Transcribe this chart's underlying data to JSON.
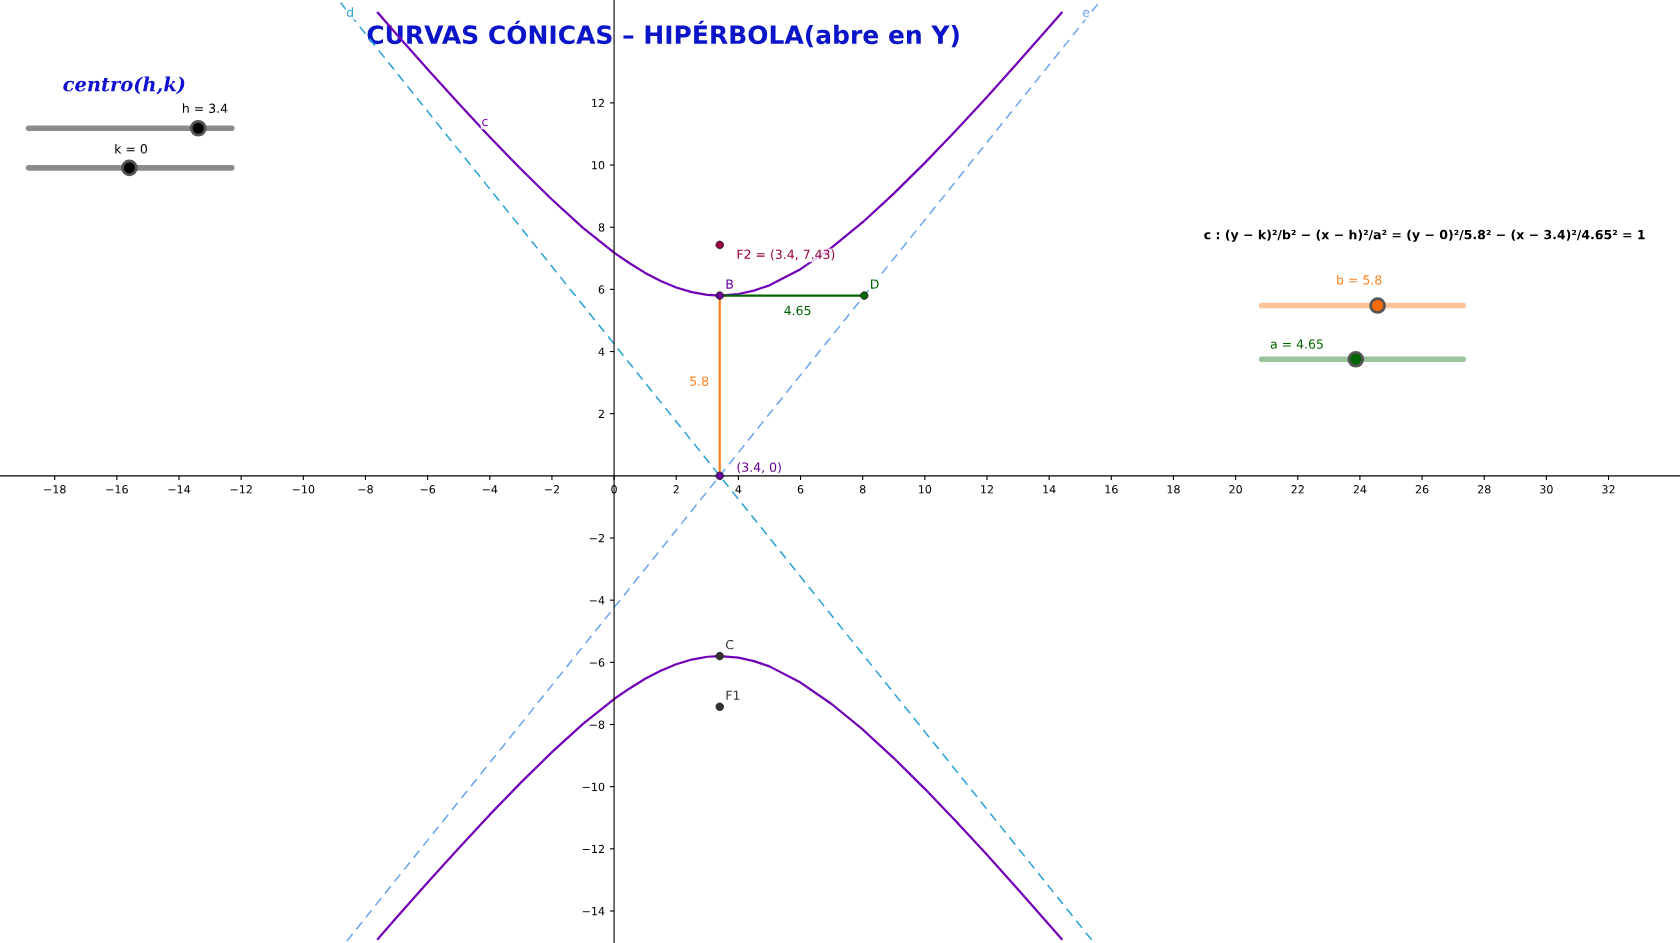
{
  "chart_data": {
    "type": "line",
    "title": "CURVAS CÓNICAS – HIPÉRBOLA(abre en Y)",
    "xlim": [
      -19.76,
      34.3
    ],
    "ylim": [
      -15.03,
      15.31
    ],
    "xticks": [
      -18,
      -16,
      -14,
      -12,
      -10,
      -8,
      -6,
      -4,
      -2,
      0,
      2,
      4,
      6,
      8,
      10,
      12,
      14,
      16,
      18,
      20,
      22,
      24,
      26,
      28,
      30,
      32
    ],
    "yticks": [
      -14,
      -12,
      -10,
      -8,
      -6,
      -4,
      -2,
      2,
      4,
      6,
      8,
      10,
      12
    ],
    "grid": false,
    "legend": false,
    "series": [
      {
        "color": "#7200b8",
        "line_style": "solid",
        "x": [
          -7.6,
          -7,
          -6,
          -5,
          -4,
          -3,
          -2,
          -1,
          0,
          0.5,
          1,
          1.5,
          2,
          2.5,
          3,
          3.4,
          4,
          4.5,
          5,
          6,
          7,
          8,
          9,
          10,
          11,
          12,
          13,
          14,
          14.4
        ],
        "values": [
          14.9,
          14.21,
          13.08,
          11.98,
          10.9,
          9.87,
          8.89,
          7.98,
          7.18,
          6.84,
          6.53,
          6.27,
          6.06,
          5.91,
          5.82,
          5.8,
          5.85,
          5.96,
          6.13,
          6.65,
          7.34,
          8.16,
          9.08,
          10.07,
          11.11,
          12.19,
          13.31,
          14.44,
          14.9
        ]
      },
      {
        "color": "#7200b8",
        "line_style": "solid",
        "x": [
          -7.6,
          -7,
          -6,
          -5,
          -4,
          -3,
          -2,
          -1,
          0,
          0.5,
          1,
          1.5,
          2,
          2.5,
          3,
          3.4,
          4,
          4.5,
          5,
          6,
          7,
          8,
          9,
          10,
          11,
          12,
          13,
          14,
          14.4
        ],
        "values": [
          -14.9,
          -14.21,
          -13.08,
          -11.98,
          -10.9,
          -9.87,
          -8.89,
          -7.98,
          -7.18,
          -6.84,
          -6.53,
          -6.27,
          -6.06,
          -5.91,
          -5.82,
          -5.8,
          -5.85,
          -5.96,
          -6.13,
          -6.65,
          -7.34,
          -8.16,
          -9.08,
          -10.07,
          -11.11,
          -12.19,
          -13.31,
          -14.44,
          -14.9
        ]
      },
      {
        "color": "#29a3d6",
        "line_style": "dashed",
        "x": [
          -8.8,
          15.4
        ],
        "values": [
          15.22,
          -14.97
        ]
      },
      {
        "color": "#6aa6ee",
        "line_style": "dashed",
        "x": [
          -8.6,
          15.6
        ],
        "values": [
          -14.97,
          15.22
        ]
      },
      {
        "color": "#ff7f1a",
        "line_style": "solid",
        "x": [
          3.4,
          3.4
        ],
        "values": [
          0,
          5.8
        ]
      },
      {
        "color": "#006400",
        "line_style": "solid",
        "x": [
          3.4,
          8.05
        ],
        "values": [
          5.8,
          5.8
        ]
      },
      {
        "type": "scatter",
        "marker": "circle",
        "colors": [
          "#660099",
          "#006400",
          "#333333",
          "#333333",
          "#99003d",
          "#660099"
        ],
        "x": [
          3.4,
          8.05,
          3.4,
          3.4,
          3.4,
          3.4
        ],
        "values": [
          5.8,
          5.8,
          -5.8,
          -7.43,
          7.43,
          0
        ]
      }
    ],
    "annotations": [
      "centro(h,k)",
      "h = 3.4",
      "k = 0",
      "c : (y − k)²/b² − (x − h)²/a² = (y − 0)²/5.8² − (x − 3.4)²/4.65² = 1",
      "b = 5.8",
      "a = 4.65",
      {
        "text": "F2 = (3.4, 7.43)",
        "x": 3.4,
        "y": 7.43
      },
      {
        "text": "B",
        "x": 3.4,
        "y": 5.8
      },
      {
        "text": "D",
        "x": 8.05,
        "y": 5.8
      },
      {
        "text": "C",
        "x": 3.4,
        "y": -5.8
      },
      {
        "text": "F1",
        "x": 3.4,
        "y": -7.43
      },
      {
        "text": "(3.4, 0)",
        "x": 3.4,
        "y": 0
      },
      {
        "text": "5.8",
        "x": 3.4,
        "y": 2.9
      },
      {
        "text": "4.65",
        "x": 5.725,
        "y": 5.8
      },
      {
        "text": "c",
        "x": -4,
        "y": 10.9
      },
      {
        "text": "d",
        "x": -8.8,
        "y": 15.22
      },
      {
        "text": "e",
        "x": 15.6,
        "y": 15.22
      }
    ]
  }
}
